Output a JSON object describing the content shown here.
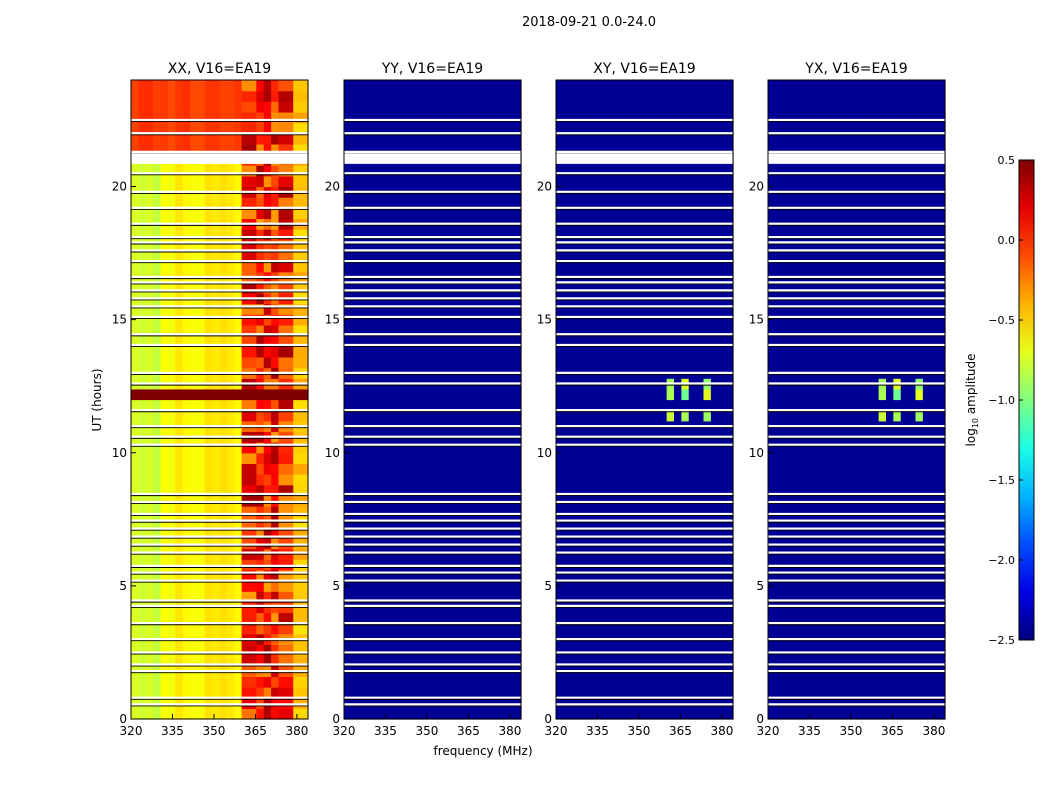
{
  "figure_title": "2018-09-21 0.0-24.0",
  "chart_data": {
    "type": "heatmap",
    "title": "2018-09-21 0.0-24.0",
    "xlabel": "frequency (MHz)",
    "ylabel": "UT (hours)",
    "xlim": [
      320,
      384
    ],
    "ylim": [
      0,
      24
    ],
    "xticks": [
      320,
      335,
      350,
      365,
      380
    ],
    "yticks": [
      0,
      5,
      10,
      15,
      20
    ],
    "panels": [
      {
        "title": "XX, V16=EA19",
        "pol": "XX"
      },
      {
        "title": "YY, V16=EA19",
        "pol": "YY"
      },
      {
        "title": "XY, V16=EA19",
        "pol": "XY"
      },
      {
        "title": "YX, V16=EA19",
        "pol": "YX"
      }
    ],
    "colorbar": {
      "label": "log10 amplitude",
      "label_main": "log",
      "label_sub": "10",
      "label_tail": " amplitude",
      "range": [
        -2.5,
        0.5
      ],
      "ticks": [
        "0.5",
        "0.0",
        "−0.5",
        "−1.0",
        "−1.5",
        "−2.0",
        "−2.5"
      ],
      "tick_values": [
        0.5,
        0.0,
        -0.5,
        -1.0,
        -1.5,
        -2.0,
        -2.5
      ],
      "colormap": "jet"
    },
    "flagged_ut_hours": [
      0.55,
      0.8,
      1.8,
      2.05,
      2.5,
      3.0,
      3.6,
      4.25,
      4.45,
      5.2,
      5.5,
      5.75,
      6.25,
      6.55,
      6.85,
      7.15,
      7.45,
      7.7,
      8.15,
      8.45,
      10.3,
      10.6,
      11.0,
      11.6,
      12.6,
      13.0,
      14.05,
      14.45,
      15.1,
      15.5,
      15.8,
      16.1,
      16.4,
      16.6,
      17.2,
      17.6,
      17.9,
      18.1,
      18.6,
      19.2,
      19.8,
      20.5,
      21.0,
      21.3,
      22.0,
      22.5
    ]
  }
}
